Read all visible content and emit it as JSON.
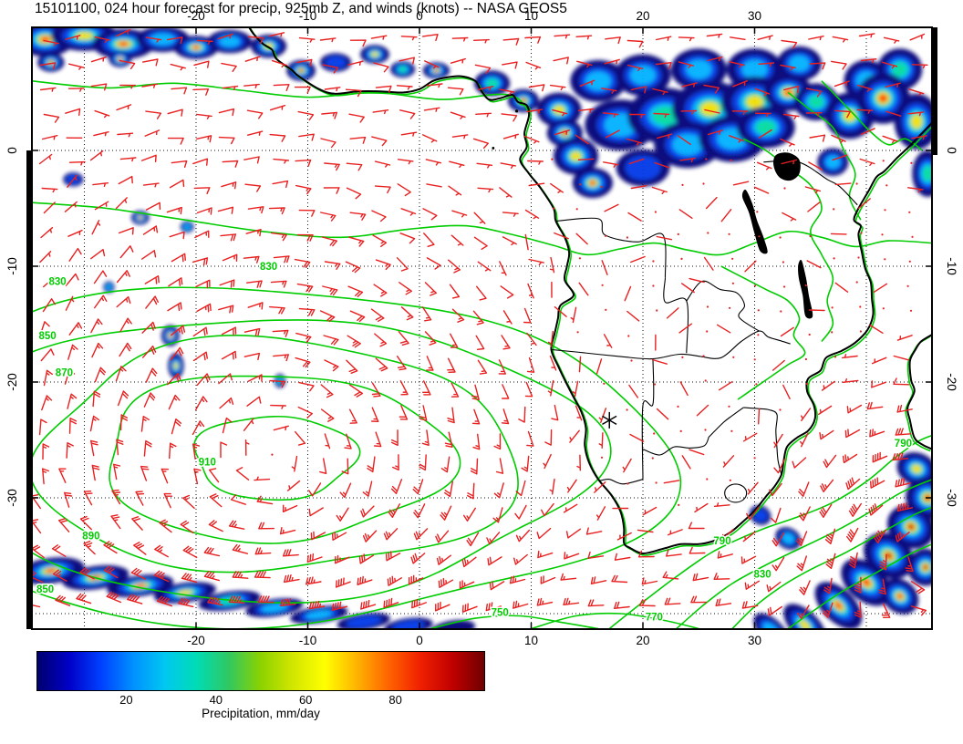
{
  "title": "15101100, 024 hour forecast for precip, 925mb Z, and winds (knots) -- NASA GEOS5",
  "axes": {
    "x_tick_labels": [
      "-20",
      "-10",
      "0",
      "10",
      "20",
      "30"
    ],
    "x_tick_values": [
      -20,
      -10,
      0,
      10,
      20,
      30
    ],
    "y_tick_labels": [
      "0",
      "-10",
      "-20",
      "-30"
    ],
    "y_tick_values": [
      0,
      -10,
      -20,
      -30
    ]
  },
  "map": {
    "coast_color": "#000000",
    "contour_color": "#00cc00",
    "wind_barb_color": "#e82020",
    "grid_style": "dotted",
    "marker": {
      "symbol": "*",
      "lon": 17.0,
      "lat": -23.3
    }
  },
  "contour_labels": [
    {
      "value": "830",
      "lon": -32.4,
      "lat": -11.6
    },
    {
      "value": "850",
      "lon": -33.3,
      "lat": -16.3
    },
    {
      "value": "870",
      "lon": -31.8,
      "lat": -19.5
    },
    {
      "value": "830",
      "lon": -13.5,
      "lat": -10.3
    },
    {
      "value": "910",
      "lon": -19.0,
      "lat": -27.2
    },
    {
      "value": "890",
      "lon": -29.4,
      "lat": -33.6
    },
    {
      "value": "850",
      "lon": -33.5,
      "lat": -38.2
    },
    {
      "value": "750",
      "lon": 7.2,
      "lat": -40.2
    },
    {
      "value": "770",
      "lon": 21.0,
      "lat": -40.6
    },
    {
      "value": "790",
      "lon": 27.1,
      "lat": -34.0
    },
    {
      "value": "830",
      "lon": 30.7,
      "lat": -36.9
    },
    {
      "value": "790",
      "lon": 43.3,
      "lat": -25.6
    }
  ],
  "colorbar": {
    "label": "Precipitation, mm/day",
    "tick_labels": [
      "20",
      "40",
      "60",
      "80"
    ],
    "tick_values": [
      20,
      40,
      60,
      80
    ],
    "range": [
      0,
      100
    ],
    "gradient": [
      "#00006e",
      "#0000c8",
      "#0040ff",
      "#0090ff",
      "#00c8f0",
      "#00dcb4",
      "#30c860",
      "#8cd200",
      "#d2e600",
      "#ffff00",
      "#ffb400",
      "#ff6400",
      "#f02000",
      "#c00000",
      "#700000"
    ]
  },
  "chart_data": {
    "type": "heatmap",
    "title": "15101100, 024 hour forecast for precip, 925mb Z, and winds (knots) -- NASA GEOS5",
    "region": "South Atlantic and southern Africa",
    "x_axis": {
      "name": "longitude_deg",
      "ticks": [
        -20,
        -10,
        0,
        10,
        20,
        30
      ],
      "range": [
        -34.7,
        45.9
      ]
    },
    "y_axis": {
      "name": "latitude_deg",
      "ticks": [
        0,
        -10,
        -20,
        -30
      ],
      "range": [
        10.6,
        -41.3
      ]
    },
    "fields": [
      {
        "name": "precipitation",
        "units": "mm/day",
        "render": "filled color shading",
        "colorbar_ticks": [
          20,
          40,
          60,
          80
        ]
      },
      {
        "name": "925mb geopotential height Z",
        "units": "m",
        "render": "green contour lines",
        "contour_interval": 20,
        "levels_labeled": [
          750,
          770,
          790,
          810,
          830,
          850,
          870,
          890,
          910
        ],
        "high_center": {
          "lon": -14,
          "lat": -26.5,
          "innermost_contour": 910
        }
      },
      {
        "name": "wind",
        "units": "knots",
        "level": "925mb",
        "render": "red wind barbs"
      }
    ],
    "forecast": {
      "init_time": "15101100",
      "lead_hours": 24,
      "model": "NASA GEOS5"
    },
    "precip_regions": [
      "tropical Atlantic ITCZ band near 8-10N in northwest corner",
      "Gulf of Guinea coastal cells with embedded heavy cores",
      "large rain mass over Congo basin and East Africa with heavy cores",
      "scattered small cells in central South Atlantic",
      "Southern Ocean frontal band across the southwest corner",
      "intense storm southeast of South Africa / Mozambique Channel with cores above 80 mm/day"
    ],
    "wind_summary": "anticyclonic (counterclockwise) flow around South Atlantic subtropical high; light winds near ridge center and interior southern Africa; strong westerlies along the southern edge; 50+ knot barbs near the southeast storm",
    "grid": "10-degree dotted graticule",
    "legend_position": "bottom colorbar"
  }
}
